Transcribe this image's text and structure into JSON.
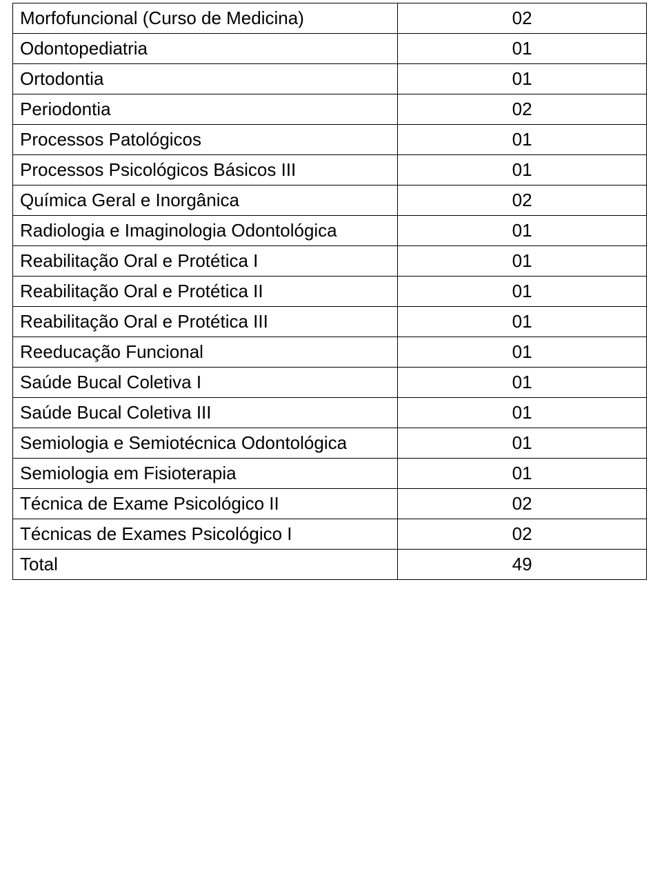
{
  "rows": [
    {
      "name": "Morfofuncional (Curso de Medicina)",
      "value": "02",
      "name_class": "tall",
      "val_class": ""
    },
    {
      "name": "Odontopediatria",
      "value": "01",
      "name_class": "",
      "val_class": "bottom-val"
    },
    {
      "name": "Ortodontia",
      "value": "01",
      "name_class": "",
      "val_class": ""
    },
    {
      "name": "Periodontia",
      "value": "02",
      "name_class": "",
      "val_class": ""
    },
    {
      "name": "Processos Patológicos",
      "value": "01",
      "name_class": "",
      "val_class": ""
    },
    {
      "name": "Processos Psicológicos Básicos III",
      "value": "01",
      "name_class": "tall",
      "val_class": ""
    },
    {
      "name": "Química Geral e Inorgânica",
      "value": "02",
      "name_class": "xtall",
      "val_class": ""
    },
    {
      "name": "Radiologia e Imaginologia Odontológica",
      "value": "01",
      "name_class": "",
      "val_class": ""
    },
    {
      "name": "Reabilitação Oral e Protética I",
      "value": "01",
      "name_class": "",
      "val_class": ""
    },
    {
      "name": "Reabilitação Oral e Protética II",
      "value": "01",
      "name_class": "",
      "val_class": ""
    },
    {
      "name": "Reabilitação Oral e Protética III",
      "value": "01",
      "name_class": "",
      "val_class": ""
    },
    {
      "name": "Reeducação Funcional",
      "value": "01",
      "name_class": "",
      "val_class": ""
    },
    {
      "name": "Saúde Bucal Coletiva I",
      "value": "01",
      "name_class": "",
      "val_class": ""
    },
    {
      "name": "Saúde Bucal Coletiva III",
      "value": "01",
      "name_class": "",
      "val_class": ""
    },
    {
      "name": "Semiologia e Semiotécnica Odontológica",
      "value": "01",
      "name_class": "",
      "val_class": ""
    },
    {
      "name": "Semiologia em Fisioterapia",
      "value": "01",
      "name_class": "",
      "val_class": ""
    },
    {
      "name": "Técnica de Exame Psicológico II",
      "value": "02",
      "name_class": "",
      "val_class": ""
    },
    {
      "name": "Técnicas de Exames Psicológico I",
      "value": "02",
      "name_class": "tall",
      "val_class": ""
    },
    {
      "name": "Total",
      "value": "49",
      "name_class": "",
      "val_class": ""
    }
  ]
}
